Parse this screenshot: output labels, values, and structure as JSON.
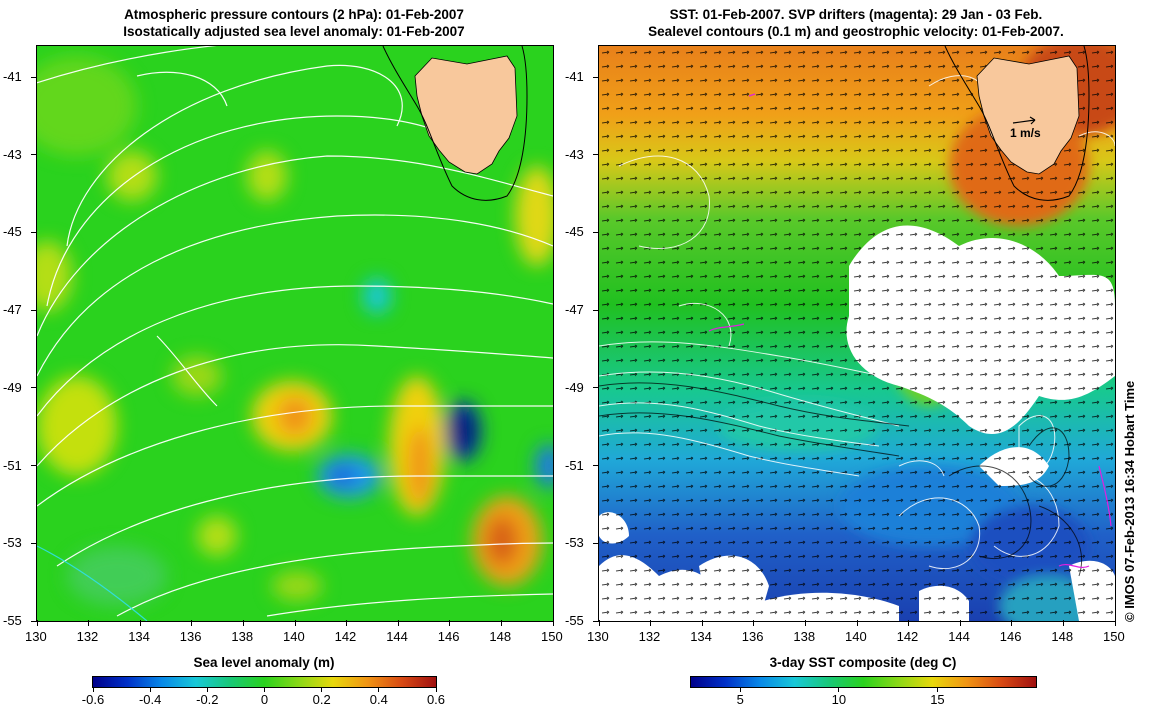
{
  "left_panel": {
    "title_line1": "Atmospheric pressure contours (2 hPa): 01-Feb-2007",
    "title_line2": "Isostatically adjusted sea level anomaly: 01-Feb-2007",
    "colorbar_title": "Sea level anomaly (m)",
    "colorbar_ticks": [
      "-0.6",
      "-0.4",
      "-0.2",
      "0",
      "0.2",
      "0.4",
      "0.6"
    ],
    "colorbar_range": [
      -0.6,
      0.6
    ]
  },
  "right_panel": {
    "title_line1": "SST: 01-Feb-2007. SVP drifters (magenta): 29 Jan - 03 Feb.",
    "title_line2": "Sealevel contours (0.1 m) and geostrophic velocity: 01-Feb-2007.",
    "colorbar_title": "3-day SST composite (deg C)",
    "colorbar_ticks": [
      "5",
      "10",
      "15"
    ],
    "colorbar_range": [
      2.5,
      20
    ],
    "velocity_label": "1 m/s"
  },
  "axes": {
    "x_ticks": [
      "130",
      "132",
      "134",
      "136",
      "138",
      "140",
      "142",
      "144",
      "146",
      "148",
      "150"
    ],
    "y_ticks": [
      "-41",
      "-43",
      "-45",
      "-47",
      "-49",
      "-51",
      "-53",
      "-55"
    ],
    "lon_range": [
      130,
      150
    ],
    "lat_range": [
      -55,
      -40.2
    ]
  },
  "credit": "© IMOS 07-Feb-2013 16:34 Hobart Time",
  "colors": {
    "land": "#f8c89c",
    "ocean_left_base": "#2ad21e",
    "ocean_right_warm": "#e8901a",
    "ocean_right_cold": "#2a7ad8",
    "contour": "#ffffff",
    "drifter": "#e020e0"
  }
}
